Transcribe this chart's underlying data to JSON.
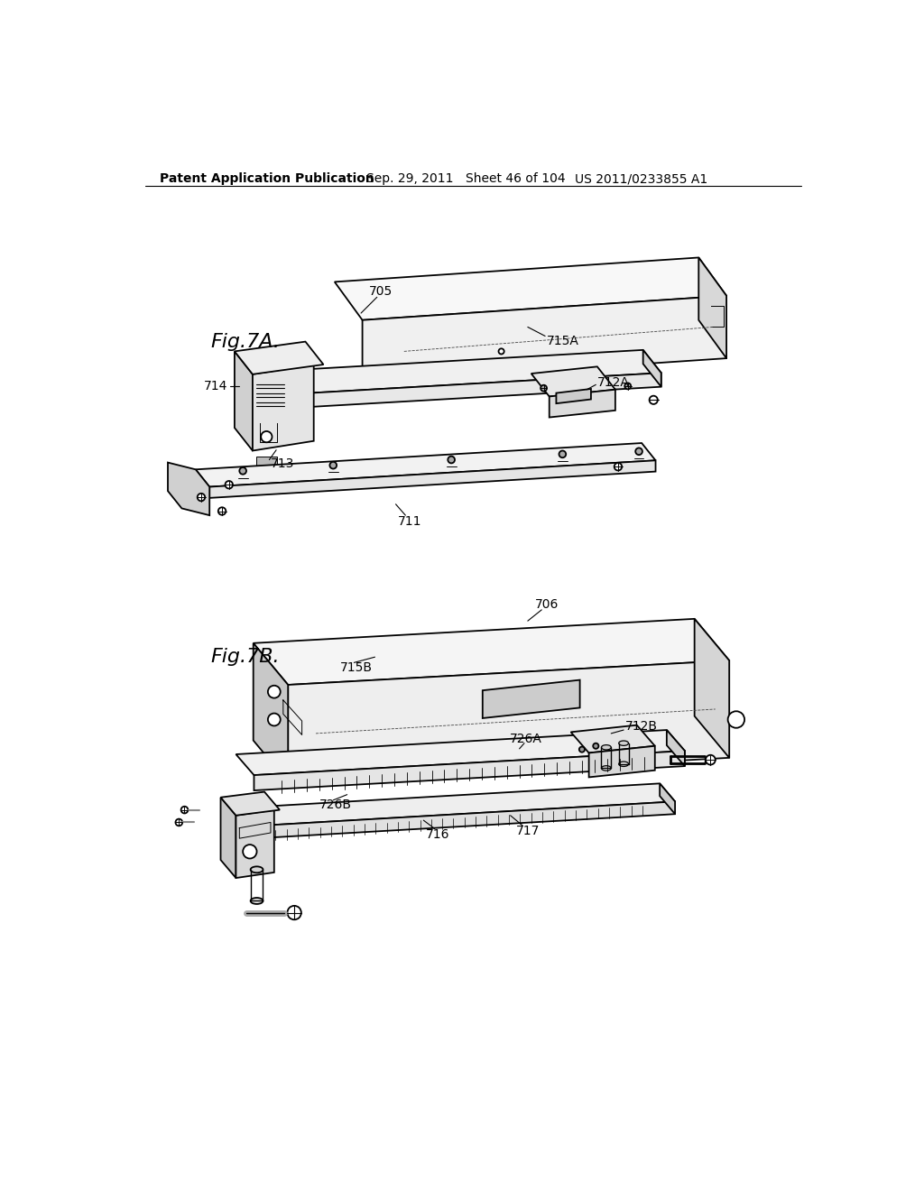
{
  "background_color": "#ffffff",
  "header_text": "Patent Application Publication",
  "header_date": "Sep. 29, 2011",
  "header_sheet": "Sheet 46 of 104",
  "header_patent": "US 2011/0233855 A1",
  "fig7a_label": "Fig.7A.",
  "fig7b_label": "Fig.7B.",
  "line_color": "#000000",
  "text_color": "#000000",
  "fig_label_fontsize": 16,
  "annotation_fontsize": 10,
  "header_fontsize": 10
}
